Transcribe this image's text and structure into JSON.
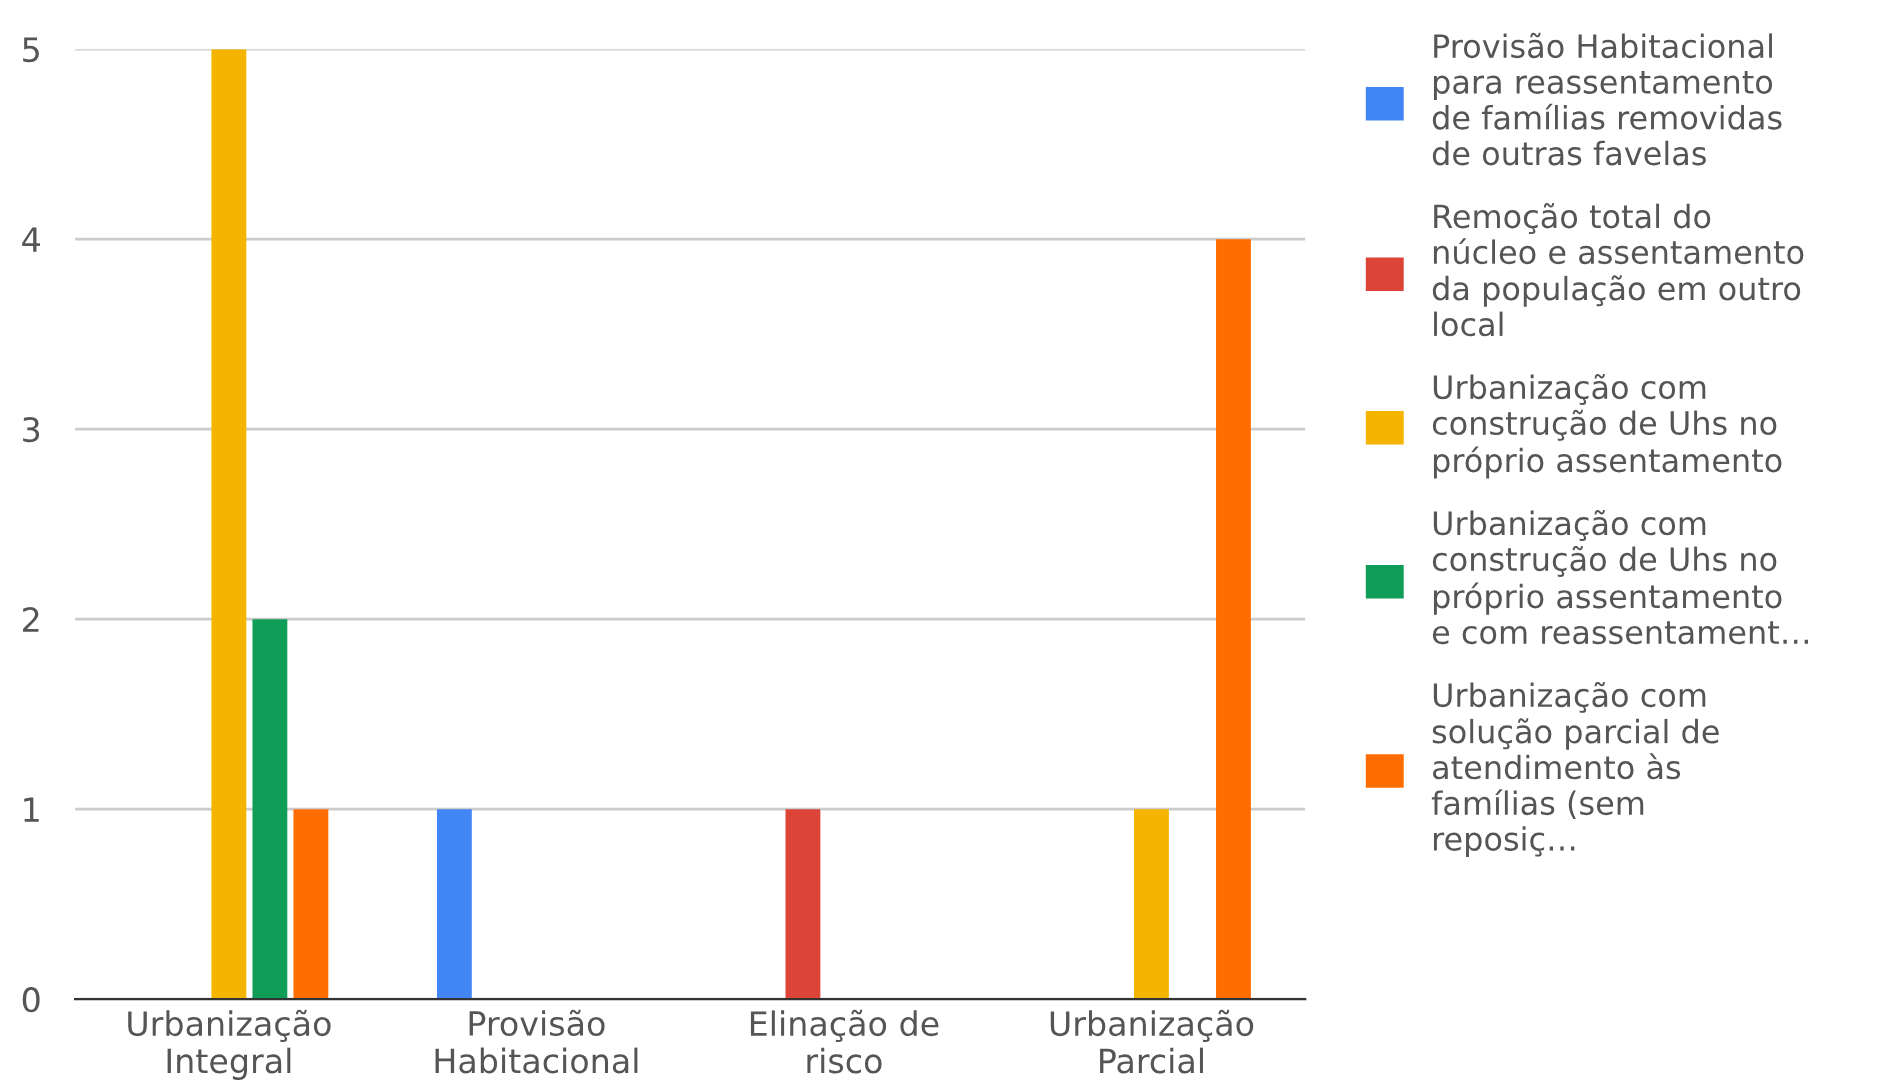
{
  "chart_data": {
    "type": "bar",
    "categories": [
      "Urbanização Integral",
      "Provisão Habitacional",
      "Elinação de risco",
      "Urbanização Parcial"
    ],
    "series": [
      {
        "name": "Provisão Habitacional para reassentamento de famílias removidas de outras favelas",
        "color": "#4285f4",
        "values": [
          0,
          1,
          0,
          0
        ]
      },
      {
        "name": "Remoção total do núcleo e assentamento da população em outro local",
        "color": "#db4437",
        "values": [
          0,
          0,
          1,
          0
        ]
      },
      {
        "name": "Urbanização com construção de Uhs no próprio assentamento",
        "color": "#f4b400",
        "values": [
          5,
          0,
          0,
          1
        ]
      },
      {
        "name": "Urbanização com construção de Uhs no próprio assentamento e com reassentament…",
        "color": "#0f9d58",
        "values": [
          2,
          0,
          0,
          0
        ]
      },
      {
        "name": "Urbanização com solução parcial de atendimento às famílias (sem reposiç…",
        "color": "#ff6d01",
        "values": [
          1,
          0,
          0,
          4
        ]
      }
    ],
    "ylim": [
      0,
      5
    ],
    "yticks": [
      0,
      1,
      2,
      3,
      4,
      5
    ],
    "grid": "y",
    "legend": "right"
  }
}
